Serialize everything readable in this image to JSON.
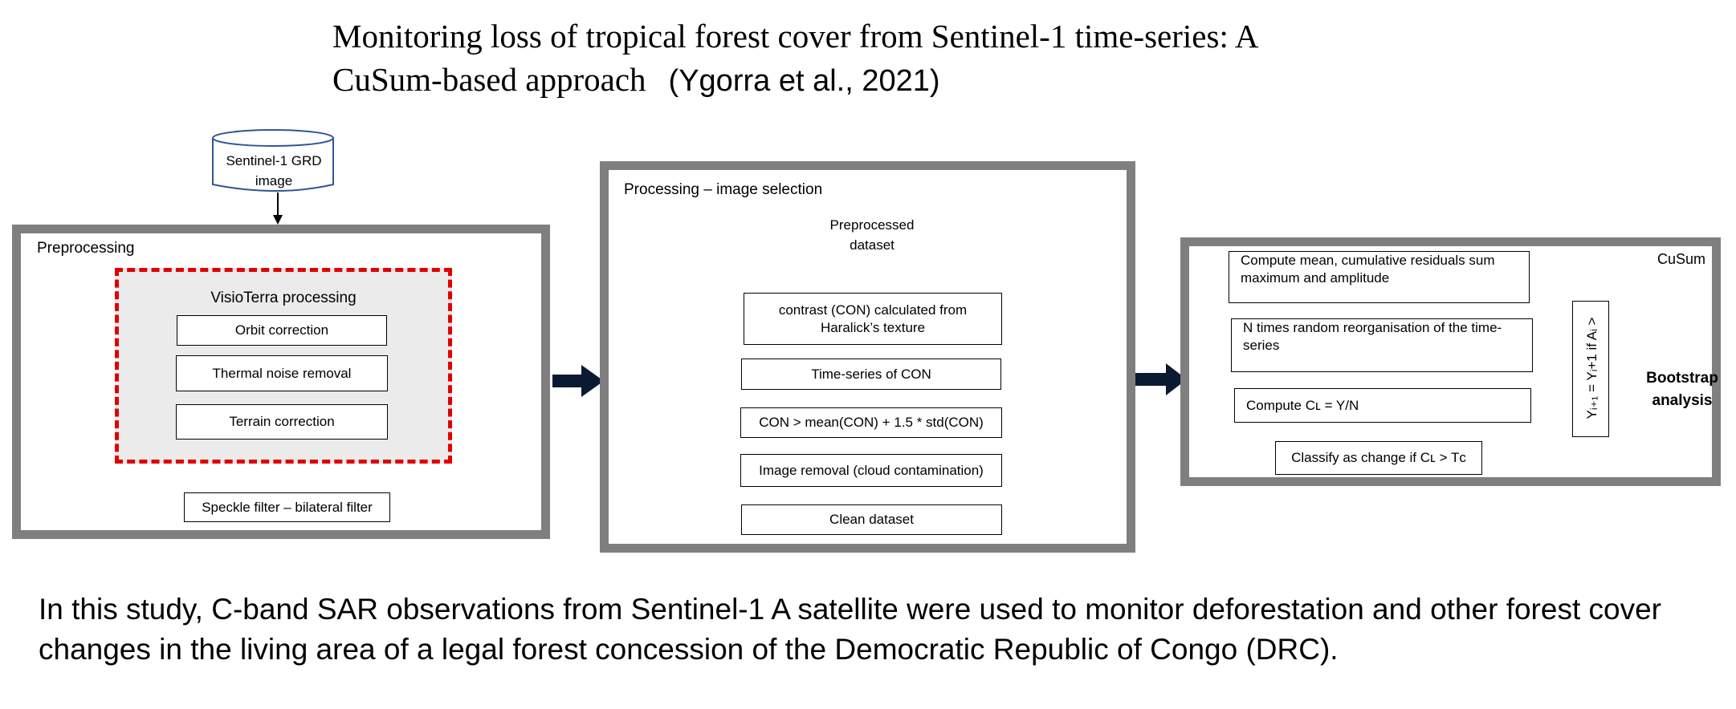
{
  "title": {
    "line1": "Monitoring loss of tropical forest cover from Sentinel-1 time-series: A",
    "line2": "CuSum-based approach",
    "citation": "(Ygorra et al., 2021)"
  },
  "source": {
    "line1": "Sentinel-1 GRD",
    "line2": "image"
  },
  "preprocessing": {
    "label": "Preprocessing",
    "visio_title": "VisioTerra processing",
    "steps": [
      "Orbit correction",
      "Thermal noise removal",
      "Terrain correction"
    ],
    "filter": "Speckle filter – bilateral filter"
  },
  "selection": {
    "label": "Processing – image selection",
    "diamond_line1": "Preprocessed",
    "diamond_line2": "dataset",
    "steps": [
      "contrast (CON) calculated from",
      "Haralick’s texture",
      "Time-series of CON",
      "CON > mean(CON) + 1.5 * std(CON)",
      "Image removal (cloud contamination)",
      "Clean dataset"
    ]
  },
  "cusum": {
    "label": "CuSum",
    "step1_line1": "Compute mean, cumulative residuals sum",
    "step1_line2": "maximum and amplitude",
    "step2_line1": "N times random reorganisation of the time-",
    "step2_line2": "series",
    "step3": "Compute Cʟ = Y/N",
    "step4": "Classify as change if Cʟ > Tᴄ",
    "loop_rule": "Yᵢ₊₁ = Yᵢ+1 if Aᵢ >",
    "bootstrap_line1": "Bootstrap",
    "bootstrap_line2": "analysis"
  },
  "caption": {
    "line1": "In this study, C-band SAR observations from Sentinel-1 A satellite were used to monitor deforestation and other forest cover",
    "line2": "changes in the living area of a legal forest concession of the Democratic Republic of Congo (DRC)."
  },
  "colors": {
    "panel_border": "#7f7f7f",
    "dashed_border": "#e00000",
    "visio_fill": "#ebebeb",
    "diamond_stroke": "#2f5597",
    "arrow_fill": "#0b1a33"
  }
}
